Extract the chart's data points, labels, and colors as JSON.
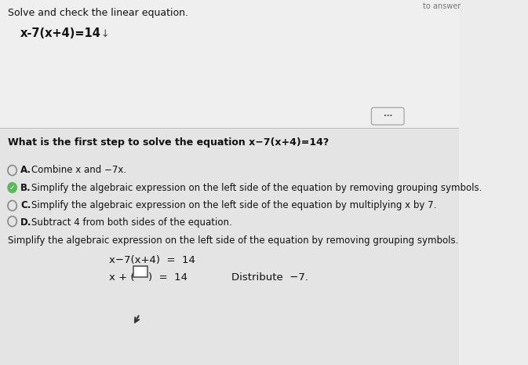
{
  "bg_top": "#ececec",
  "bg_bottom": "#e2e2e2",
  "title": "Solve and check the linear equation.",
  "equation": "x-7(x+4)=14",
  "question": "What is the first step to solve the equation x−7(x+4)=14?",
  "options": [
    {
      "label": "A.",
      "text": "Combine x and −7x."
    },
    {
      "label": "B.",
      "text": "Simplify the algebraic expression on the left side of the equation by removing grouping symbols."
    },
    {
      "label": "C.",
      "text": "Simplify the algebraic expression on the left side of the equation by multiplying x by 7."
    },
    {
      "label": "D.",
      "text": "Subtract 4 from both sides of the equation."
    }
  ],
  "correct_option": 1,
  "simplify_text": "Simplify the algebraic expression on the left side of the equation by removing grouping symbols.",
  "step_eq1": "x−7(x+4)  =  14",
  "distribute_label": "Distribute  −7.",
  "header_top": "to answer"
}
